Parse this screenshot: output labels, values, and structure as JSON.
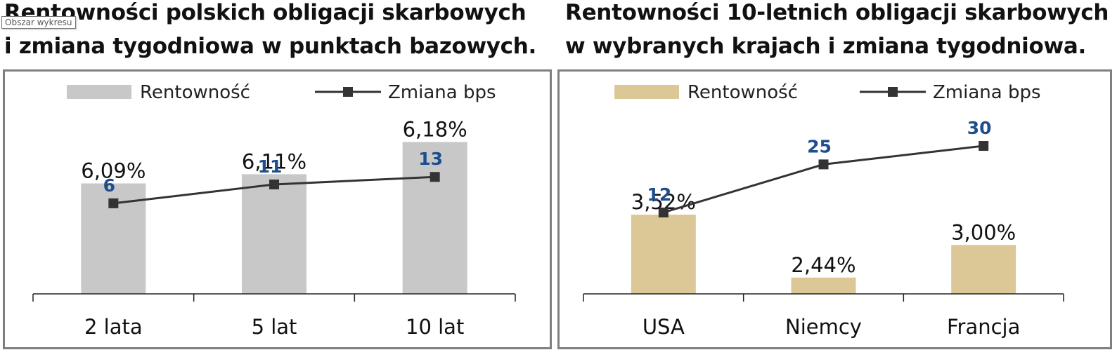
{
  "tooltip": "Obszar wykresu",
  "chart_data": [
    {
      "type": "bar",
      "title_lines": [
        "Rentowności polskich obligacji skarbowych",
        "i zmiana tygodniowa w punktach bazowych."
      ],
      "categories": [
        "2 lata",
        "5 lat",
        "10 lat"
      ],
      "series": [
        {
          "name": "Rentowność",
          "type": "bar",
          "values": [
            6.09,
            6.11,
            6.18
          ],
          "labels": [
            "6,09%",
            "6,11%",
            "6,18%"
          ],
          "color": "#c8c8c8"
        },
        {
          "name": "Zmiana bps",
          "type": "line",
          "values": [
            6,
            11,
            13
          ],
          "color": "#333333",
          "label_color": "#1f4e8c"
        }
      ],
      "bar_ylim": [
        5.85,
        6.26
      ],
      "line_ylim": [
        -18,
        32
      ],
      "legend": "top"
    },
    {
      "type": "bar",
      "title_lines": [
        "Rentowności 10-letnich obligacji skarbowych",
        "w wybranych krajach i zmiana tygodniowa."
      ],
      "categories": [
        "USA",
        "Niemcy",
        "Francja"
      ],
      "series": [
        {
          "name": "Rentowność",
          "type": "bar",
          "values": [
            3.52,
            2.44,
            3.0
          ],
          "labels": [
            "3,52%",
            "2,44%",
            "3,00%"
          ],
          "color": "#dcc896"
        },
        {
          "name": "Zmiana bps",
          "type": "line",
          "values": [
            12,
            25,
            30
          ],
          "color": "#333333",
          "label_color": "#1f4e8c"
        }
      ],
      "bar_ylim": [
        2.16,
        5.4
      ],
      "line_ylim": [
        -10,
        41
      ],
      "legend": "top"
    }
  ]
}
